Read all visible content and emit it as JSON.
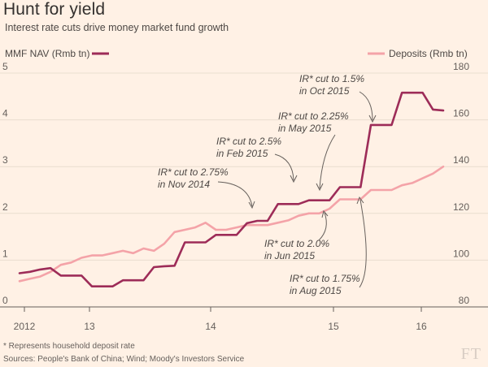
{
  "title": "Hunt for yield",
  "subtitle": "Interest rate cuts drive money market fund growth",
  "footnote": "* Represents household deposit rate",
  "sources": "Sources: People's Bank of China; Wind; Moody's Investors Service",
  "logo": "FT",
  "chart_data": {
    "type": "line",
    "x_ticks": [
      "2012",
      "13",
      "14",
      "15",
      "16"
    ],
    "left_axis": {
      "label": "MMF NAV (Rmb tn)",
      "ticks": [
        "0",
        "1",
        "2",
        "3",
        "4",
        "5"
      ],
      "range": [
        0,
        5
      ]
    },
    "right_axis": {
      "label": "Deposits (Rmb tn)",
      "ticks": [
        "80",
        "100",
        "120",
        "140",
        "160",
        "180"
      ],
      "range": [
        80,
        180
      ]
    },
    "grid": true,
    "series": [
      {
        "name": "MMF NAV (Rmb tn)",
        "axis": "left",
        "color": "#9d2c58",
        "values": [
          0.72,
          0.75,
          0.8,
          0.83,
          0.67,
          0.67,
          0.67,
          0.44,
          0.44,
          0.44,
          0.57,
          0.57,
          0.57,
          0.85,
          0.87,
          0.88,
          1.38,
          1.38,
          1.38,
          1.54,
          1.54,
          1.54,
          1.79,
          1.84,
          1.84,
          2.2,
          2.2,
          2.2,
          2.28,
          2.28,
          2.28,
          2.56,
          2.56,
          2.56,
          3.89,
          3.89,
          3.89,
          4.58,
          4.58,
          4.58,
          4.22,
          4.2
        ]
      },
      {
        "name": "Deposits (Rmb tn)",
        "axis": "right",
        "color": "#f4a3a8",
        "values": [
          91,
          92,
          93,
          95,
          98,
          99,
          101,
          102,
          102,
          103,
          104,
          103,
          105,
          104,
          107,
          112,
          113,
          114,
          116,
          113,
          113,
          114,
          115,
          115,
          115,
          116,
          117,
          119,
          120,
          120,
          122,
          126,
          126,
          126,
          130,
          130,
          130,
          132,
          133,
          135,
          137,
          140
        ]
      }
    ],
    "annotations": [
      {
        "line1": "IR* cut to 2.75%",
        "line2": "in Nov 2014"
      },
      {
        "line1": "IR* cut to 2.5%",
        "line2": "in Feb 2015"
      },
      {
        "line1": "IR* cut to 2.25%",
        "line2": "in May 2015"
      },
      {
        "line1": "IR* cut to 1.5%",
        "line2": "in Oct 2015"
      },
      {
        "line1": "IR* cut to 2.0%",
        "line2": "in Jun 2015"
      },
      {
        "line1": "IR* cut to 1.75%",
        "line2": "in Aug 2015"
      }
    ]
  }
}
